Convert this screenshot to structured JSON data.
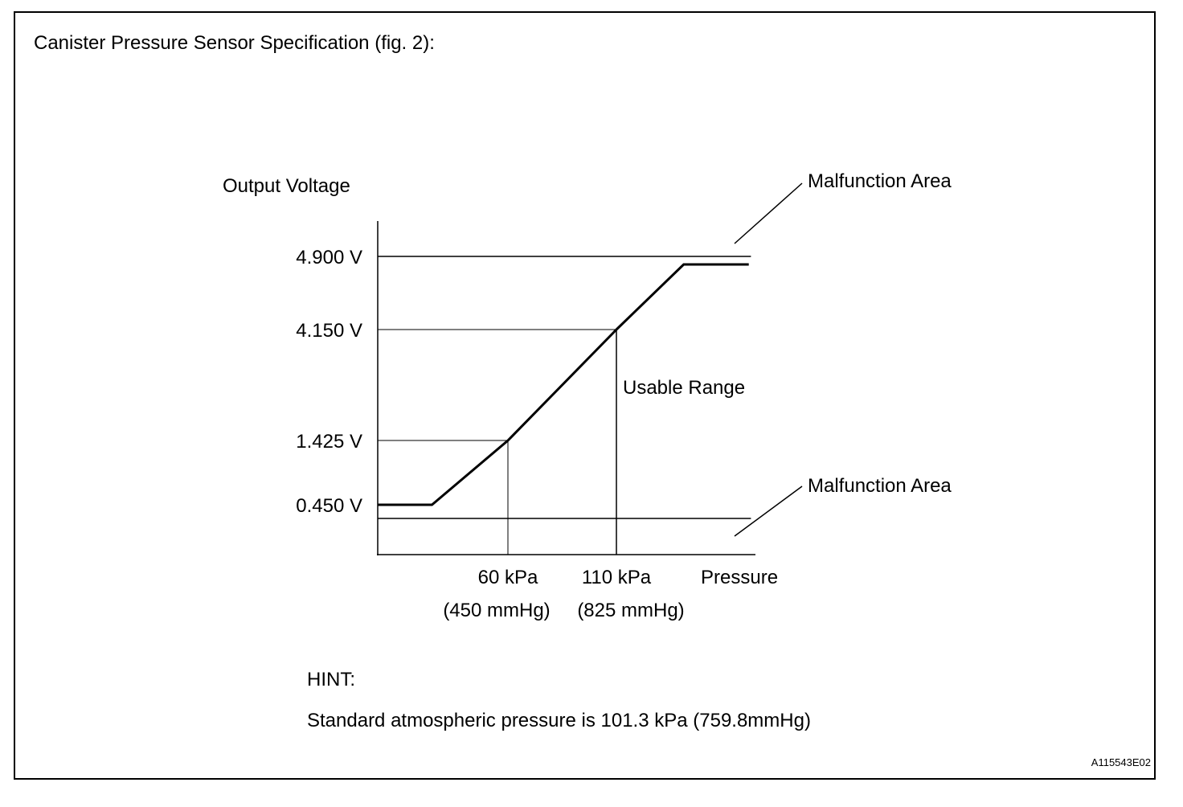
{
  "title": "Canister Pressure Sensor Specification (fig. 2):",
  "hint": {
    "label": "HINT:",
    "text": "Standard atmospheric pressure is 101.3 kPa (759.8mmHg)"
  },
  "figure_id": "A115543E02",
  "chart_data": {
    "type": "line",
    "ylabel": "Output Voltage",
    "xlabel": "Pressure",
    "y_ticks": [
      {
        "value": 4.9,
        "label": "4.900 V"
      },
      {
        "value": 4.15,
        "label": "4.150 V"
      },
      {
        "value": 1.425,
        "label": "1.425 V"
      },
      {
        "value": 0.45,
        "label": "0.450 V"
      }
    ],
    "x_ticks": [
      {
        "value": 60,
        "label": "60 kPa",
        "sublabel": "(450 mmHg)"
      },
      {
        "value": 110,
        "label": "110 kPa",
        "sublabel": "(825 mmHg)"
      }
    ],
    "series": [
      {
        "x": [
          0,
          25,
          60,
          110,
          141,
          171
        ],
        "y": [
          0.45,
          0.45,
          1.425,
          4.15,
          4.8,
          4.8
        ]
      }
    ],
    "malfunction_thresholds": [
      4.9,
      0.3
    ],
    "annotations": {
      "upper_area": "Malfunction Area",
      "lower_area": "Malfunction Area",
      "range": "Usable Range"
    },
    "xlim": [
      0,
      172
    ],
    "grid": false
  }
}
